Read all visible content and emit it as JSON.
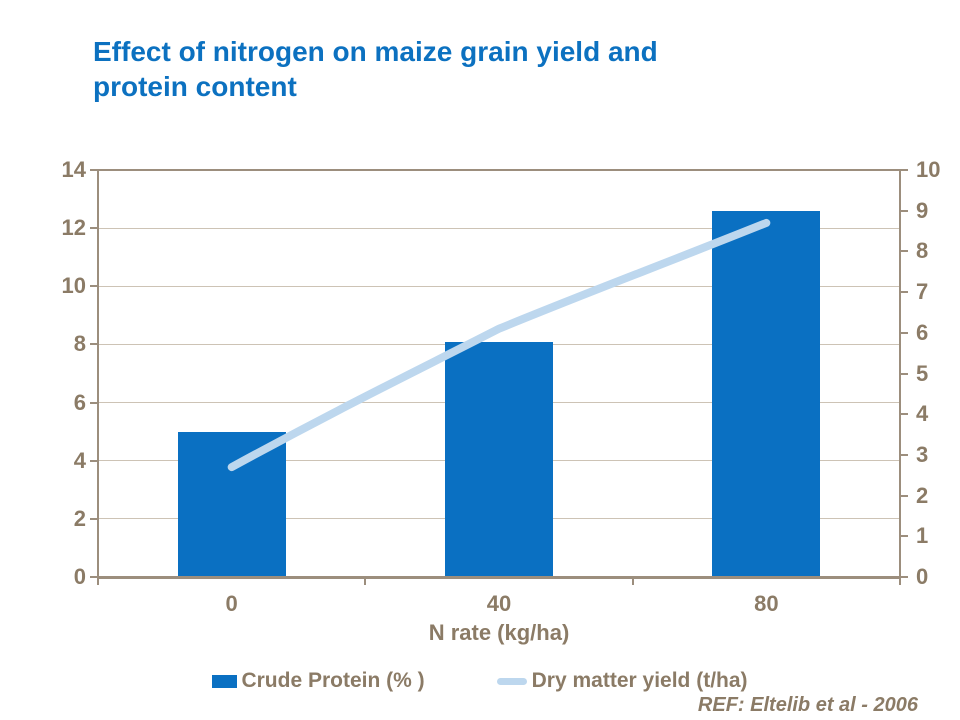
{
  "title_lines": [
    "Effect of nitrogen on maize grain yield and",
    "protein content"
  ],
  "x_axis_label": "N rate (kg/ha)",
  "legend": {
    "bar_label": "Crude Protein (% )",
    "line_label": "Dry matter yield (t/ha)"
  },
  "footer_ref": "REF:  Eltelib et al - 2006",
  "colors": {
    "title_blue": "#0C71C0",
    "bar_blue": "#0A70C2",
    "line_light_blue": "#BDD7EE",
    "text_brown": "#8B7B66",
    "gridline_tan": "#CDC3B5",
    "axis_brown": "#9C8E7D"
  },
  "chart_data": {
    "type": "bar",
    "title": "Effect of nitrogen on maize grain yield and protein content",
    "xlabel": "N rate (kg/ha)",
    "categories": [
      "0",
      "40",
      "80"
    ],
    "series": [
      {
        "name": "Crude Protein (% )",
        "type": "bar",
        "axis": "left",
        "values": [
          5.0,
          8.1,
          12.6
        ]
      },
      {
        "name": "Dry matter yield (t/ha)",
        "type": "line",
        "axis": "right",
        "values": [
          2.7,
          6.1,
          8.7
        ]
      }
    ],
    "left_axis": {
      "min": 0,
      "max": 14,
      "step": 2,
      "ticks": [
        0,
        2,
        4,
        6,
        8,
        10,
        12,
        14
      ]
    },
    "right_axis": {
      "min": 0,
      "max": 10,
      "step": 1,
      "ticks": [
        0,
        1,
        2,
        3,
        4,
        5,
        6,
        7,
        8,
        9,
        10
      ]
    },
    "grid": true,
    "legend_position": "bottom"
  }
}
